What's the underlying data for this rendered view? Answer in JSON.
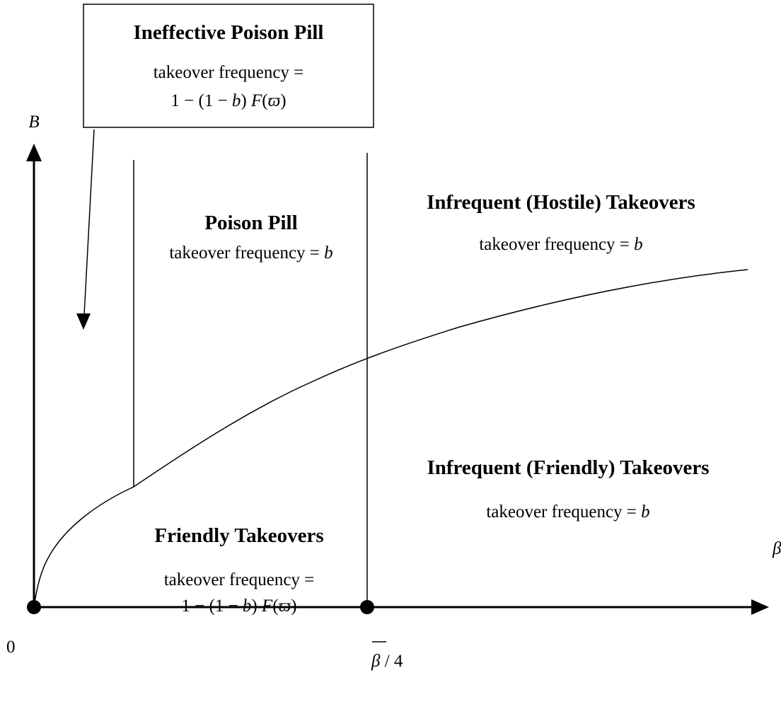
{
  "box": {
    "title": "Ineffective Poison Pill",
    "lines": [
      [
        {
          "text": "takeover frequency ="
        }
      ],
      [
        {
          "text": "1 − (1 − "
        },
        {
          "text": "b",
          "italic": true
        },
        {
          "text": ") "
        },
        {
          "text": "F",
          "italic": true
        },
        {
          "text": "("
        },
        {
          "text": "ϖ",
          "italic": true
        },
        {
          "text": ")"
        }
      ]
    ]
  },
  "regions": [
    {
      "title": "Poison Pill",
      "lines": [
        [
          {
            "text": "takeover frequency = "
          },
          {
            "text": "b",
            "italic": true
          }
        ]
      ]
    },
    {
      "title": "Infrequent (Hostile) Takeovers",
      "lines": [
        [
          {
            "text": "takeover frequency = "
          },
          {
            "text": "b",
            "italic": true
          }
        ]
      ]
    },
    {
      "title": "Infrequent (Friendly) Takeovers",
      "lines": [
        [
          {
            "text": "takeover frequency = "
          },
          {
            "text": "b",
            "italic": true
          }
        ]
      ]
    },
    {
      "title": "Friendly Takeovers",
      "lines": [
        [
          {
            "text": "takeover frequency ="
          }
        ],
        [
          {
            "text": "1 − (1 − "
          },
          {
            "text": "b",
            "italic": true
          },
          {
            "text": ") "
          },
          {
            "text": "F",
            "italic": true
          },
          {
            "text": "("
          },
          {
            "text": "ϖ",
            "italic": true
          },
          {
            "text": ")"
          }
        ]
      ]
    }
  ],
  "axes": {
    "y_label": "B",
    "x_label": "β",
    "origin_label": "0",
    "x_tick_label": [
      {
        "text": "β",
        "italic": true
      },
      {
        "text": " / 4"
      }
    ]
  }
}
